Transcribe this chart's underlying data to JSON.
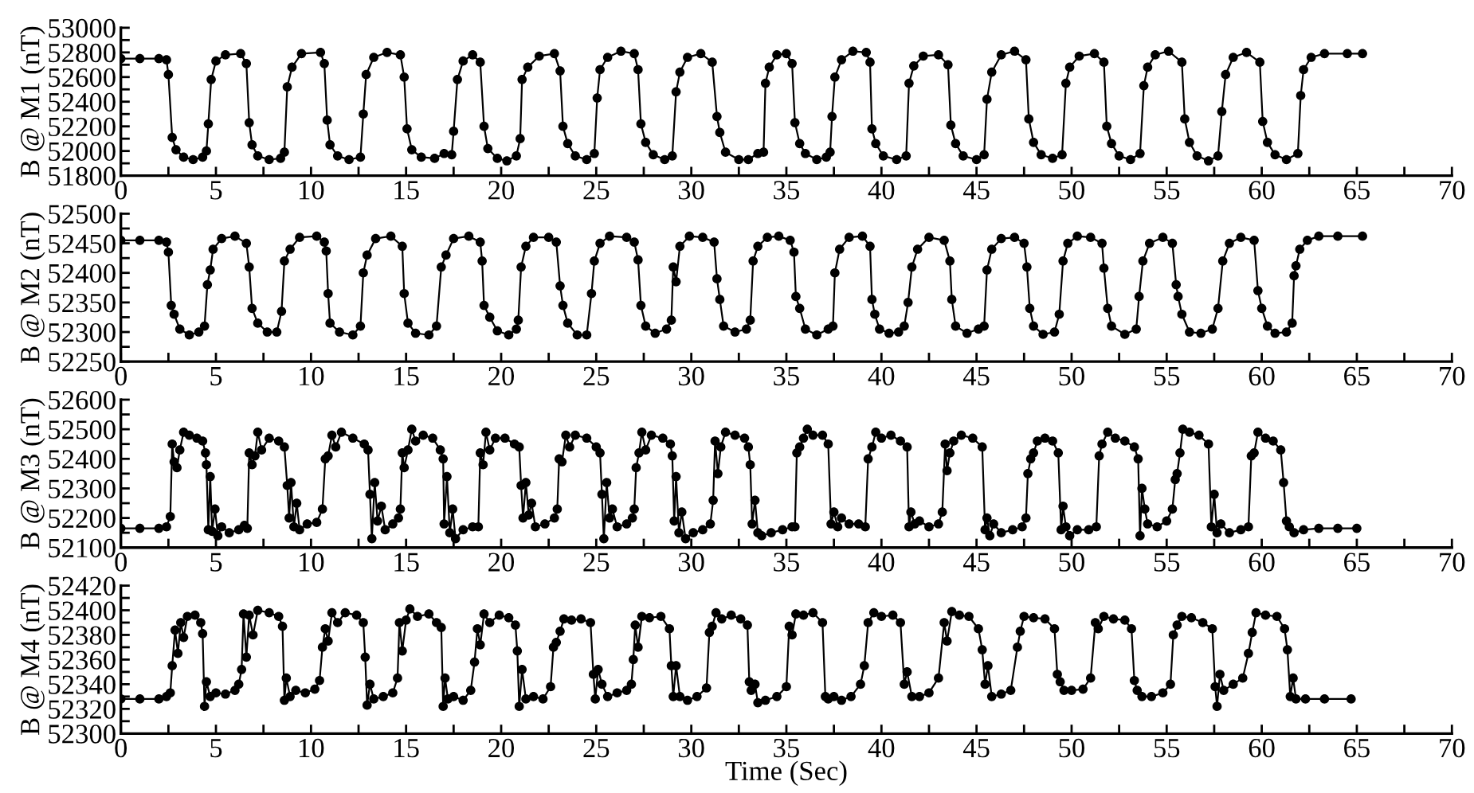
{
  "chart_data": [
    {
      "type": "line",
      "ylabel": "B @ M1 (nT)",
      "marker": "circle",
      "line_style": "solid",
      "grid": false,
      "xlim": [
        0,
        70
      ],
      "xticks": [
        0,
        {
          "value": 2.5,
          "label": null
        },
        5,
        {
          "value": 7.5,
          "label": null
        },
        10,
        {
          "value": 12.5,
          "label": null
        },
        15,
        {
          "value": 17.5,
          "label": null
        },
        20,
        {
          "value": 22.5,
          "label": null
        },
        25,
        {
          "value": 27.5,
          "label": null
        },
        30,
        {
          "value": 32.5,
          "label": null
        },
        35,
        {
          "value": 37.5,
          "label": null
        },
        40,
        {
          "value": 42.5,
          "label": null
        },
        45,
        {
          "value": 47.5,
          "label": null
        },
        50,
        {
          "value": 52.5,
          "label": null
        },
        55,
        {
          "value": 57.5,
          "label": null
        },
        60,
        {
          "value": 62.5,
          "label": null
        },
        65,
        {
          "value": 67.5,
          "label": null
        },
        70
      ],
      "ylim": [
        51800,
        53000
      ],
      "yticks": [
        51800,
        {
          "value": 51900,
          "label": null
        },
        52000,
        {
          "value": 52100,
          "label": null
        },
        52200,
        {
          "value": 52300,
          "label": null
        },
        52400,
        {
          "value": 52500,
          "label": null
        },
        52600,
        {
          "value": 52700,
          "label": null
        },
        52800,
        {
          "value": 52900,
          "label": null
        },
        53000
      ],
      "series": [
        {
          "color": "#000000",
          "x": [
            0,
            1,
            2,
            2.4,
            2.5,
            2.7,
            2.9,
            3.3,
            3.8,
            4.3,
            4.5,
            4.6,
            4.75,
            5.0,
            5.5,
            6.3,
            6.6,
            6.75,
            6.9,
            7.2,
            7.8,
            8.4,
            8.6,
            8.75,
            9.0,
            9.5,
            10.5,
            10.7,
            10.85,
            11.0,
            11.4,
            12.0,
            12.6,
            12.75,
            12.9,
            13.3,
            14.0,
            14.7,
            14.9,
            15.05,
            15.3,
            15.8,
            16.5,
            17.0,
            17.4,
            17.5,
            17.7,
            18.0,
            18.5,
            18.9,
            19.1,
            19.3,
            19.8,
            20.3,
            20.8,
            21.0,
            21.1,
            21.4,
            22.0,
            22.8,
            23.1,
            23.25,
            23.5,
            23.9,
            24.5,
            24.9,
            25.05,
            25.2,
            25.6,
            26.3,
            27.0,
            27.2,
            27.35,
            27.6,
            28.0,
            28.6,
            29.0,
            29.2,
            29.4,
            29.8,
            30.5,
            31.1,
            31.35,
            31.5,
            31.8,
            32.5,
            33.0,
            33.5,
            33.8,
            33.9,
            34.1,
            34.5,
            35.0,
            35.3,
            35.45,
            35.7,
            36.0,
            36.6,
            37.1,
            37.3,
            37.4,
            37.55,
            37.9,
            38.5,
            39.2,
            39.4,
            39.5,
            39.7,
            40.1,
            40.8,
            41.3,
            41.45,
            41.7,
            42.2,
            43.0,
            43.5,
            43.65,
            43.9,
            44.3,
            45.0,
            45.4,
            45.55,
            45.8,
            46.3,
            47.0,
            47.6,
            47.75,
            48.0,
            48.4,
            49.0,
            49.5,
            49.7,
            49.9,
            50.4,
            51.2,
            51.7,
            51.85,
            52.1,
            52.5,
            53.1,
            53.6,
            53.8,
            54.0,
            54.4,
            55.1,
            55.8,
            55.95,
            56.2,
            56.6,
            57.2,
            57.7,
            57.9,
            58.1,
            58.5,
            59.2,
            59.9,
            60.05,
            60.3,
            60.7,
            61.3,
            61.9,
            62.05,
            62.2,
            62.6,
            63.3,
            64.5,
            65.3
          ],
          "values": [
            52750,
            52750,
            52750,
            52740,
            52620,
            52110,
            52010,
            51950,
            51930,
            51950,
            52000,
            52220,
            52580,
            52730,
            52780,
            52790,
            52710,
            52230,
            52050,
            51960,
            51930,
            51940,
            51990,
            52520,
            52680,
            52790,
            52800,
            52710,
            52250,
            52050,
            51960,
            51930,
            51950,
            52300,
            52620,
            52760,
            52800,
            52780,
            52600,
            52180,
            52010,
            51950,
            51940,
            51980,
            51970,
            52160,
            52580,
            52730,
            52780,
            52720,
            52200,
            52020,
            51940,
            51920,
            51960,
            52100,
            52580,
            52680,
            52770,
            52790,
            52650,
            52200,
            52060,
            51960,
            51930,
            51980,
            52430,
            52660,
            52760,
            52810,
            52790,
            52660,
            52220,
            52070,
            51970,
            51930,
            51960,
            52480,
            52640,
            52760,
            52790,
            52720,
            52280,
            52150,
            51990,
            51930,
            51930,
            51980,
            51990,
            52550,
            52680,
            52780,
            52790,
            52710,
            52230,
            52060,
            51980,
            51930,
            51950,
            51990,
            52280,
            52600,
            52740,
            52810,
            52800,
            52720,
            52180,
            52060,
            51960,
            51930,
            51960,
            52550,
            52690,
            52770,
            52780,
            52700,
            52210,
            52060,
            51960,
            51930,
            51970,
            52420,
            52640,
            52780,
            52810,
            52740,
            52260,
            52070,
            51970,
            51940,
            51970,
            52550,
            52680,
            52770,
            52790,
            52720,
            52200,
            52060,
            51960,
            51930,
            51980,
            52530,
            52680,
            52780,
            52810,
            52720,
            52260,
            52070,
            51960,
            51920,
            51960,
            52320,
            52620,
            52760,
            52800,
            52720,
            52240,
            52070,
            51970,
            51930,
            51980,
            52450,
            52660,
            52760,
            52790,
            52790,
            52790
          ]
        }
      ]
    },
    {
      "type": "line",
      "ylabel": "B @ M2 (nT)",
      "marker": "circle",
      "line_style": "solid",
      "grid": false,
      "xlim": [
        0,
        70
      ],
      "xticks": [
        0,
        {
          "value": 2.5,
          "label": null
        },
        5,
        {
          "value": 7.5,
          "label": null
        },
        10,
        {
          "value": 12.5,
          "label": null
        },
        15,
        {
          "value": 17.5,
          "label": null
        },
        20,
        {
          "value": 22.5,
          "label": null
        },
        25,
        {
          "value": 27.5,
          "label": null
        },
        30,
        {
          "value": 32.5,
          "label": null
        },
        35,
        {
          "value": 37.5,
          "label": null
        },
        40,
        {
          "value": 42.5,
          "label": null
        },
        45,
        {
          "value": 47.5,
          "label": null
        },
        50,
        {
          "value": 52.5,
          "label": null
        },
        55,
        {
          "value": 57.5,
          "label": null
        },
        60,
        {
          "value": 62.5,
          "label": null
        },
        65,
        {
          "value": 67.5,
          "label": null
        },
        70
      ],
      "ylim": [
        52250,
        52500
      ],
      "yticks": [
        52250,
        {
          "value": 52275,
          "label": null
        },
        52300,
        {
          "value": 52325,
          "label": null
        },
        52350,
        {
          "value": 52375,
          "label": null
        },
        52400,
        {
          "value": 52425,
          "label": null
        },
        52450,
        {
          "value": 52475,
          "label": null
        },
        52500
      ],
      "series": [
        {
          "color": "#000000",
          "x": [
            0,
            1,
            2,
            2.4,
            2.5,
            2.65,
            2.8,
            3.1,
            3.6,
            4.1,
            4.4,
            4.55,
            4.7,
            4.85,
            5.3,
            6.0,
            6.6,
            6.75,
            6.9,
            7.2,
            7.7,
            8.2,
            8.45,
            8.6,
            8.9,
            9.4,
            10.3,
            10.7,
            10.8,
            10.9,
            11.0,
            11.5,
            12.2,
            12.6,
            12.75,
            12.95,
            13.4,
            14.2,
            14.8,
            14.9,
            15.1,
            15.5,
            16.2,
            16.6,
            16.85,
            17.1,
            17.5,
            18.3,
            18.9,
            19.0,
            19.1,
            19.4,
            19.8,
            20.4,
            20.8,
            20.9,
            21.05,
            21.3,
            21.7,
            22.5,
            22.9,
            23.1,
            23.25,
            23.5,
            24.0,
            24.5,
            24.75,
            24.9,
            25.2,
            25.7,
            26.6,
            27.0,
            27.2,
            27.35,
            27.6,
            28.1,
            28.7,
            28.95,
            29.05,
            29.2,
            29.4,
            29.9,
            30.6,
            31.2,
            31.35,
            31.5,
            31.7,
            32.3,
            32.9,
            33.1,
            33.25,
            33.5,
            34.0,
            34.6,
            35.2,
            35.4,
            35.5,
            35.7,
            36.0,
            36.6,
            37.2,
            37.45,
            37.55,
            37.8,
            38.3,
            39.0,
            39.4,
            39.5,
            39.65,
            39.9,
            40.4,
            40.9,
            41.2,
            41.4,
            41.6,
            41.9,
            42.5,
            43.3,
            43.6,
            43.7,
            43.9,
            44.5,
            45.1,
            45.4,
            45.55,
            45.8,
            46.3,
            47.0,
            47.5,
            47.65,
            47.8,
            48.0,
            48.5,
            49.1,
            49.35,
            49.55,
            49.8,
            50.3,
            51.0,
            51.6,
            51.7,
            51.9,
            52.1,
            52.8,
            53.4,
            53.55,
            53.75,
            54.1,
            54.8,
            55.3,
            55.5,
            55.6,
            55.8,
            56.2,
            56.8,
            57.4,
            57.7,
            57.95,
            58.3,
            58.9,
            59.6,
            59.8,
            60.0,
            60.3,
            60.7,
            61.3,
            61.6,
            61.7,
            61.8,
            62.0,
            62.4,
            63.0,
            64.0,
            65.3
          ],
          "values": [
            52455,
            52455,
            52455,
            52452,
            52435,
            52345,
            52330,
            52305,
            52295,
            52300,
            52310,
            52380,
            52405,
            52440,
            52458,
            52462,
            52450,
            52410,
            52340,
            52315,
            52300,
            52300,
            52335,
            52420,
            52440,
            52460,
            52462,
            52452,
            52437,
            52365,
            52315,
            52300,
            52295,
            52310,
            52400,
            52430,
            52458,
            52462,
            52445,
            52365,
            52315,
            52298,
            52295,
            52310,
            52410,
            52430,
            52458,
            52462,
            52452,
            52420,
            52345,
            52325,
            52302,
            52295,
            52305,
            52320,
            52410,
            52445,
            52460,
            52460,
            52452,
            52378,
            52345,
            52315,
            52295,
            52295,
            52365,
            52420,
            52450,
            52462,
            52460,
            52452,
            52422,
            52345,
            52310,
            52298,
            52305,
            52320,
            52410,
            52385,
            52445,
            52462,
            52460,
            52452,
            52390,
            52355,
            52310,
            52300,
            52305,
            52320,
            52420,
            52445,
            52460,
            52462,
            52455,
            52435,
            52360,
            52340,
            52305,
            52295,
            52305,
            52310,
            52400,
            52440,
            52460,
            52462,
            52445,
            52355,
            52330,
            52305,
            52298,
            52300,
            52310,
            52350,
            52410,
            52440,
            52460,
            52455,
            52420,
            52355,
            52310,
            52298,
            52305,
            52310,
            52405,
            52440,
            52458,
            52460,
            52450,
            52410,
            52340,
            52310,
            52296,
            52300,
            52330,
            52420,
            52450,
            52462,
            52460,
            52450,
            52408,
            52340,
            52310,
            52296,
            52305,
            52360,
            52420,
            52450,
            52460,
            52450,
            52380,
            52360,
            52330,
            52300,
            52298,
            52305,
            52340,
            52420,
            52450,
            52460,
            52455,
            52370,
            52340,
            52310,
            52298,
            52300,
            52315,
            52395,
            52412,
            52440,
            52455,
            52462,
            52462,
            52462
          ]
        }
      ]
    },
    {
      "type": "line",
      "ylabel": "B @ M3 (nT)",
      "marker": "circle",
      "line_style": "solid",
      "grid": false,
      "xlim": [
        0,
        70
      ],
      "xticks": [
        0,
        {
          "value": 2.5,
          "label": null
        },
        5,
        {
          "value": 7.5,
          "label": null
        },
        10,
        {
          "value": 12.5,
          "label": null
        },
        15,
        {
          "value": 17.5,
          "label": null
        },
        20,
        {
          "value": 22.5,
          "label": null
        },
        25,
        {
          "value": 27.5,
          "label": null
        },
        30,
        {
          "value": 32.5,
          "label": null
        },
        35,
        {
          "value": 37.5,
          "label": null
        },
        40,
        {
          "value": 42.5,
          "label": null
        },
        45,
        {
          "value": 47.5,
          "label": null
        },
        50,
        {
          "value": 52.5,
          "label": null
        },
        55,
        {
          "value": 57.5,
          "label": null
        },
        60,
        {
          "value": 62.5,
          "label": null
        },
        65,
        {
          "value": 67.5,
          "label": null
        },
        70
      ],
      "ylim": [
        52100,
        52600
      ],
      "yticks": [
        52100,
        {
          "value": 52150,
          "label": null
        },
        52200,
        {
          "value": 52250,
          "label": null
        },
        52300,
        {
          "value": 52350,
          "label": null
        },
        52400,
        {
          "value": 52450,
          "label": null
        },
        52500,
        {
          "value": 52550,
          "label": null
        },
        52600
      ],
      "series": [
        {
          "color": "#000000",
          "x": [
            0,
            1,
            2,
            2.4,
            2.6,
            2.7,
            2.8,
            2.95,
            3.1,
            3.3,
            3.6,
            4.0,
            4.3,
            4.45,
            4.5,
            4.6,
            4.7,
            4.8,
            4.95,
            5.1,
            5.3,
            5.7,
            6.2,
            6.5,
            6.65,
            6.75,
            6.9,
            7.05,
            7.2,
            7.4,
            7.8,
            8.3,
            8.6,
            8.75,
            8.85,
            8.95,
            9.1,
            9.25,
            9.4,
            9.8,
            10.3,
            10.6,
            10.75,
            10.9,
            11.1,
            11.3,
            11.6,
            12.2,
            12.8,
            13.0,
            13.1,
            13.2,
            13.35,
            13.5,
            13.7,
            13.9,
            14.3,
            14.6,
            14.7,
            14.8,
            14.9,
            15.1,
            15.3,
            15.5,
            15.9,
            16.4,
            16.8,
            16.95,
            17.0,
            17.15,
            17.3,
            17.45,
            17.6,
            18.0,
            18.5,
            18.8,
            18.9,
            19.05,
            19.2,
            19.4,
            19.7,
            20.2,
            20.7,
            20.95,
            21.05,
            21.15,
            21.3,
            21.45,
            21.6,
            21.8,
            22.3,
            22.8,
            22.95,
            23.05,
            23.2,
            23.4,
            23.6,
            23.9,
            24.5,
            25.0,
            25.2,
            25.3,
            25.4,
            25.55,
            25.7,
            25.85,
            26.1,
            26.6,
            26.9,
            27.0,
            27.1,
            27.25,
            27.4,
            27.6,
            27.9,
            28.5,
            28.9,
            29.0,
            29.1,
            29.2,
            29.35,
            29.5,
            29.7,
            30.1,
            30.6,
            31.0,
            31.15,
            31.25,
            31.4,
            31.55,
            31.8,
            32.3,
            32.8,
            33.0,
            33.1,
            33.2,
            33.35,
            33.5,
            33.7,
            34.2,
            34.8,
            35.3,
            35.45,
            35.55,
            35.7,
            35.9,
            36.1,
            36.4,
            36.9,
            37.2,
            37.35,
            37.5,
            37.7,
            37.9,
            38.3,
            38.8,
            39.15,
            39.3,
            39.5,
            39.7,
            40.0,
            40.5,
            41.0,
            41.35,
            41.45,
            41.55,
            41.75,
            42.0,
            42.5,
            43.0,
            43.2,
            43.35,
            43.45,
            43.6,
            43.8,
            44.2,
            44.8,
            45.3,
            45.45,
            45.55,
            45.7,
            45.9,
            46.3,
            46.9,
            47.4,
            47.6,
            47.7,
            47.85,
            48.0,
            48.2,
            48.6,
            49.0,
            49.3,
            49.45,
            49.55,
            49.7,
            49.9,
            50.3,
            50.9,
            51.3,
            51.45,
            51.6,
            51.9,
            52.3,
            52.8,
            53.3,
            53.5,
            53.6,
            53.7,
            53.85,
            54.0,
            54.5,
            55.0,
            55.3,
            55.45,
            55.55,
            55.7,
            55.85,
            56.2,
            56.7,
            57.2,
            57.35,
            57.5,
            57.65,
            57.85,
            58.3,
            58.9,
            59.3,
            59.45,
            59.6,
            59.8,
            60.2,
            60.6,
            61.0,
            61.15,
            61.3,
            61.45,
            61.7,
            62.2,
            63,
            64,
            65
          ],
          "values": [
            52165,
            52165,
            52165,
            52170,
            52205,
            52450,
            52390,
            52370,
            52430,
            52490,
            52480,
            52470,
            52460,
            52420,
            52380,
            52160,
            52340,
            52155,
            52230,
            52140,
            52170,
            52150,
            52160,
            52175,
            52165,
            52420,
            52380,
            52410,
            52490,
            52430,
            52470,
            52460,
            52440,
            52310,
            52200,
            52320,
            52170,
            52250,
            52160,
            52180,
            52185,
            52230,
            52400,
            52410,
            52480,
            52440,
            52490,
            52470,
            52450,
            52430,
            52280,
            52130,
            52320,
            52190,
            52240,
            52160,
            52180,
            52200,
            52230,
            52420,
            52370,
            52430,
            52500,
            52460,
            52480,
            52470,
            52430,
            52400,
            52180,
            52340,
            52150,
            52230,
            52130,
            52160,
            52170,
            52170,
            52420,
            52380,
            52490,
            52430,
            52470,
            52470,
            52450,
            52440,
            52310,
            52200,
            52320,
            52210,
            52250,
            52170,
            52180,
            52200,
            52230,
            52400,
            52390,
            52480,
            52440,
            52480,
            52470,
            52440,
            52420,
            52280,
            52130,
            52320,
            52200,
            52230,
            52170,
            52180,
            52200,
            52230,
            52370,
            52420,
            52490,
            52430,
            52480,
            52470,
            52450,
            52410,
            52190,
            52340,
            52150,
            52220,
            52130,
            52150,
            52160,
            52180,
            52260,
            52460,
            52350,
            52440,
            52490,
            52480,
            52470,
            52440,
            52380,
            52180,
            52260,
            52150,
            52140,
            52150,
            52160,
            52170,
            52170,
            52420,
            52440,
            52470,
            52500,
            52480,
            52480,
            52450,
            52180,
            52220,
            52170,
            52200,
            52180,
            52180,
            52170,
            52400,
            52440,
            52490,
            52470,
            52480,
            52460,
            52440,
            52170,
            52220,
            52180,
            52190,
            52170,
            52180,
            52220,
            52450,
            52360,
            52420,
            52460,
            52480,
            52470,
            52440,
            52160,
            52200,
            52140,
            52180,
            52150,
            52160,
            52170,
            52200,
            52350,
            52400,
            52420,
            52460,
            52470,
            52460,
            52420,
            52160,
            52240,
            52170,
            52140,
            52160,
            52160,
            52170,
            52410,
            52450,
            52490,
            52470,
            52460,
            52440,
            52400,
            52140,
            52300,
            52230,
            52180,
            52170,
            52190,
            52230,
            52330,
            52350,
            52420,
            52500,
            52490,
            52480,
            52450,
            52170,
            52280,
            52150,
            52180,
            52150,
            52160,
            52170,
            52410,
            52420,
            52490,
            52470,
            52460,
            52430,
            52320,
            52190,
            52170,
            52150,
            52160,
            52165,
            52165,
            52165
          ]
        }
      ]
    },
    {
      "type": "line",
      "ylabel": "B @ M4 (nT)",
      "xlabel": "Time (Sec)",
      "marker": "circle",
      "line_style": "solid",
      "grid": false,
      "xlim": [
        0,
        70
      ],
      "xticks": [
        0,
        {
          "value": 2.5,
          "label": null
        },
        5,
        {
          "value": 7.5,
          "label": null
        },
        10,
        {
          "value": 12.5,
          "label": null
        },
        15,
        {
          "value": 17.5,
          "label": null
        },
        20,
        {
          "value": 22.5,
          "label": null
        },
        25,
        {
          "value": 27.5,
          "label": null
        },
        30,
        {
          "value": 32.5,
          "label": null
        },
        35,
        {
          "value": 37.5,
          "label": null
        },
        40,
        {
          "value": 42.5,
          "label": null
        },
        45,
        {
          "value": 47.5,
          "label": null
        },
        50,
        {
          "value": 52.5,
          "label": null
        },
        55,
        {
          "value": 57.5,
          "label": null
        },
        60,
        {
          "value": 62.5,
          "label": null
        },
        65,
        {
          "value": 67.5,
          "label": null
        },
        70
      ],
      "ylim": [
        52300,
        52420
      ],
      "yticks": [
        52300,
        {
          "value": 52310,
          "label": null
        },
        52320,
        {
          "value": 52330,
          "label": null
        },
        52340,
        {
          "value": 52350,
          "label": null
        },
        52360,
        {
          "value": 52370,
          "label": null
        },
        52380,
        {
          "value": 52390,
          "label": null
        },
        52400,
        {
          "value": 52410,
          "label": null
        },
        52420
      ],
      "series": [
        {
          "color": "#000000",
          "x": [
            0,
            1,
            2,
            2.4,
            2.6,
            2.7,
            2.85,
            3.0,
            3.15,
            3.3,
            3.5,
            3.9,
            4.2,
            4.3,
            4.4,
            4.5,
            4.7,
            5.0,
            5.5,
            6.0,
            6.2,
            6.35,
            6.45,
            6.6,
            6.75,
            6.95,
            7.2,
            7.8,
            8.3,
            8.5,
            8.6,
            8.7,
            8.9,
            9.2,
            9.7,
            10.2,
            10.45,
            10.6,
            10.75,
            10.9,
            11.1,
            11.4,
            11.8,
            12.4,
            12.75,
            12.85,
            12.95,
            13.1,
            13.3,
            13.8,
            14.3,
            14.55,
            14.65,
            14.8,
            15.0,
            15.2,
            15.6,
            16.2,
            16.6,
            16.85,
            16.95,
            17.05,
            17.2,
            17.5,
            18.0,
            18.4,
            18.6,
            18.75,
            18.9,
            19.1,
            19.4,
            19.9,
            20.4,
            20.75,
            20.85,
            20.95,
            21.1,
            21.3,
            21.7,
            22.2,
            22.6,
            22.75,
            22.9,
            23.1,
            23.3,
            23.7,
            24.2,
            24.7,
            24.85,
            24.95,
            25.1,
            25.3,
            25.6,
            26.1,
            26.6,
            26.85,
            26.95,
            27.05,
            27.2,
            27.4,
            27.8,
            28.4,
            28.85,
            28.95,
            29.05,
            29.2,
            29.4,
            29.8,
            30.3,
            30.8,
            30.95,
            31.1,
            31.3,
            31.6,
            32.1,
            32.6,
            32.95,
            33.05,
            33.15,
            33.35,
            33.5,
            33.9,
            34.5,
            35.0,
            35.15,
            35.3,
            35.5,
            35.9,
            36.4,
            36.9,
            37.05,
            37.2,
            37.5,
            37.9,
            38.4,
            38.9,
            39.1,
            39.3,
            39.6,
            40.0,
            40.6,
            41.0,
            41.2,
            41.35,
            41.6,
            42.0,
            42.5,
            43.0,
            43.3,
            43.45,
            43.7,
            44.1,
            44.6,
            45.1,
            45.3,
            45.45,
            45.6,
            45.8,
            46.3,
            46.8,
            47.15,
            47.3,
            47.5,
            48.0,
            48.6,
            49.1,
            49.25,
            49.4,
            49.6,
            50.0,
            50.6,
            51.0,
            51.25,
            51.4,
            51.7,
            52.2,
            52.8,
            53.15,
            53.3,
            53.45,
            53.7,
            54.2,
            54.8,
            55.2,
            55.35,
            55.55,
            55.8,
            56.3,
            56.9,
            57.4,
            57.55,
            57.65,
            57.8,
            58.0,
            58.5,
            59.0,
            59.3,
            59.5,
            59.7,
            60.2,
            60.8,
            61.2,
            61.35,
            61.5,
            61.65,
            61.8,
            62.3,
            63.3,
            64.7
          ],
          "values": [
            52328,
            52328,
            52328,
            52330,
            52333,
            52355,
            52384,
            52365,
            52390,
            52378,
            52395,
            52396,
            52390,
            52381,
            52322,
            52342,
            52330,
            52333,
            52332,
            52335,
            52340,
            52352,
            52397,
            52362,
            52396,
            52380,
            52400,
            52398,
            52395,
            52387,
            52327,
            52345,
            52330,
            52335,
            52333,
            52336,
            52343,
            52370,
            52385,
            52375,
            52398,
            52390,
            52398,
            52396,
            52390,
            52362,
            52323,
            52340,
            52328,
            52330,
            52333,
            52345,
            52390,
            52367,
            52392,
            52401,
            52395,
            52397,
            52390,
            52386,
            52322,
            52345,
            52328,
            52330,
            52327,
            52335,
            52358,
            52385,
            52372,
            52397,
            52390,
            52396,
            52394,
            52388,
            52367,
            52322,
            52352,
            52328,
            52330,
            52328,
            52338,
            52370,
            52374,
            52383,
            52393,
            52392,
            52393,
            52390,
            52348,
            52328,
            52352,
            52340,
            52330,
            52333,
            52335,
            52340,
            52360,
            52388,
            52370,
            52395,
            52394,
            52395,
            52385,
            52355,
            52330,
            52355,
            52330,
            52327,
            52330,
            52337,
            52382,
            52387,
            52398,
            52393,
            52396,
            52393,
            52388,
            52342,
            52335,
            52340,
            52325,
            52327,
            52330,
            52338,
            52387,
            52380,
            52397,
            52396,
            52398,
            52390,
            52330,
            52328,
            52330,
            52327,
            52330,
            52340,
            52355,
            52390,
            52398,
            52395,
            52396,
            52390,
            52340,
            52350,
            52330,
            52330,
            52333,
            52345,
            52390,
            52375,
            52399,
            52396,
            52395,
            52385,
            52368,
            52340,
            52355,
            52330,
            52332,
            52335,
            52370,
            52383,
            52395,
            52394,
            52393,
            52385,
            52348,
            52342,
            52335,
            52335,
            52336,
            52345,
            52390,
            52385,
            52395,
            52393,
            52392,
            52385,
            52343,
            52335,
            52330,
            52330,
            52333,
            52340,
            52380,
            52388,
            52395,
            52394,
            52390,
            52385,
            52338,
            52322,
            52348,
            52335,
            52340,
            52345,
            52365,
            52382,
            52398,
            52396,
            52395,
            52385,
            52368,
            52330,
            52345,
            52328,
            52328,
            52328,
            52328
          ]
        }
      ]
    }
  ]
}
